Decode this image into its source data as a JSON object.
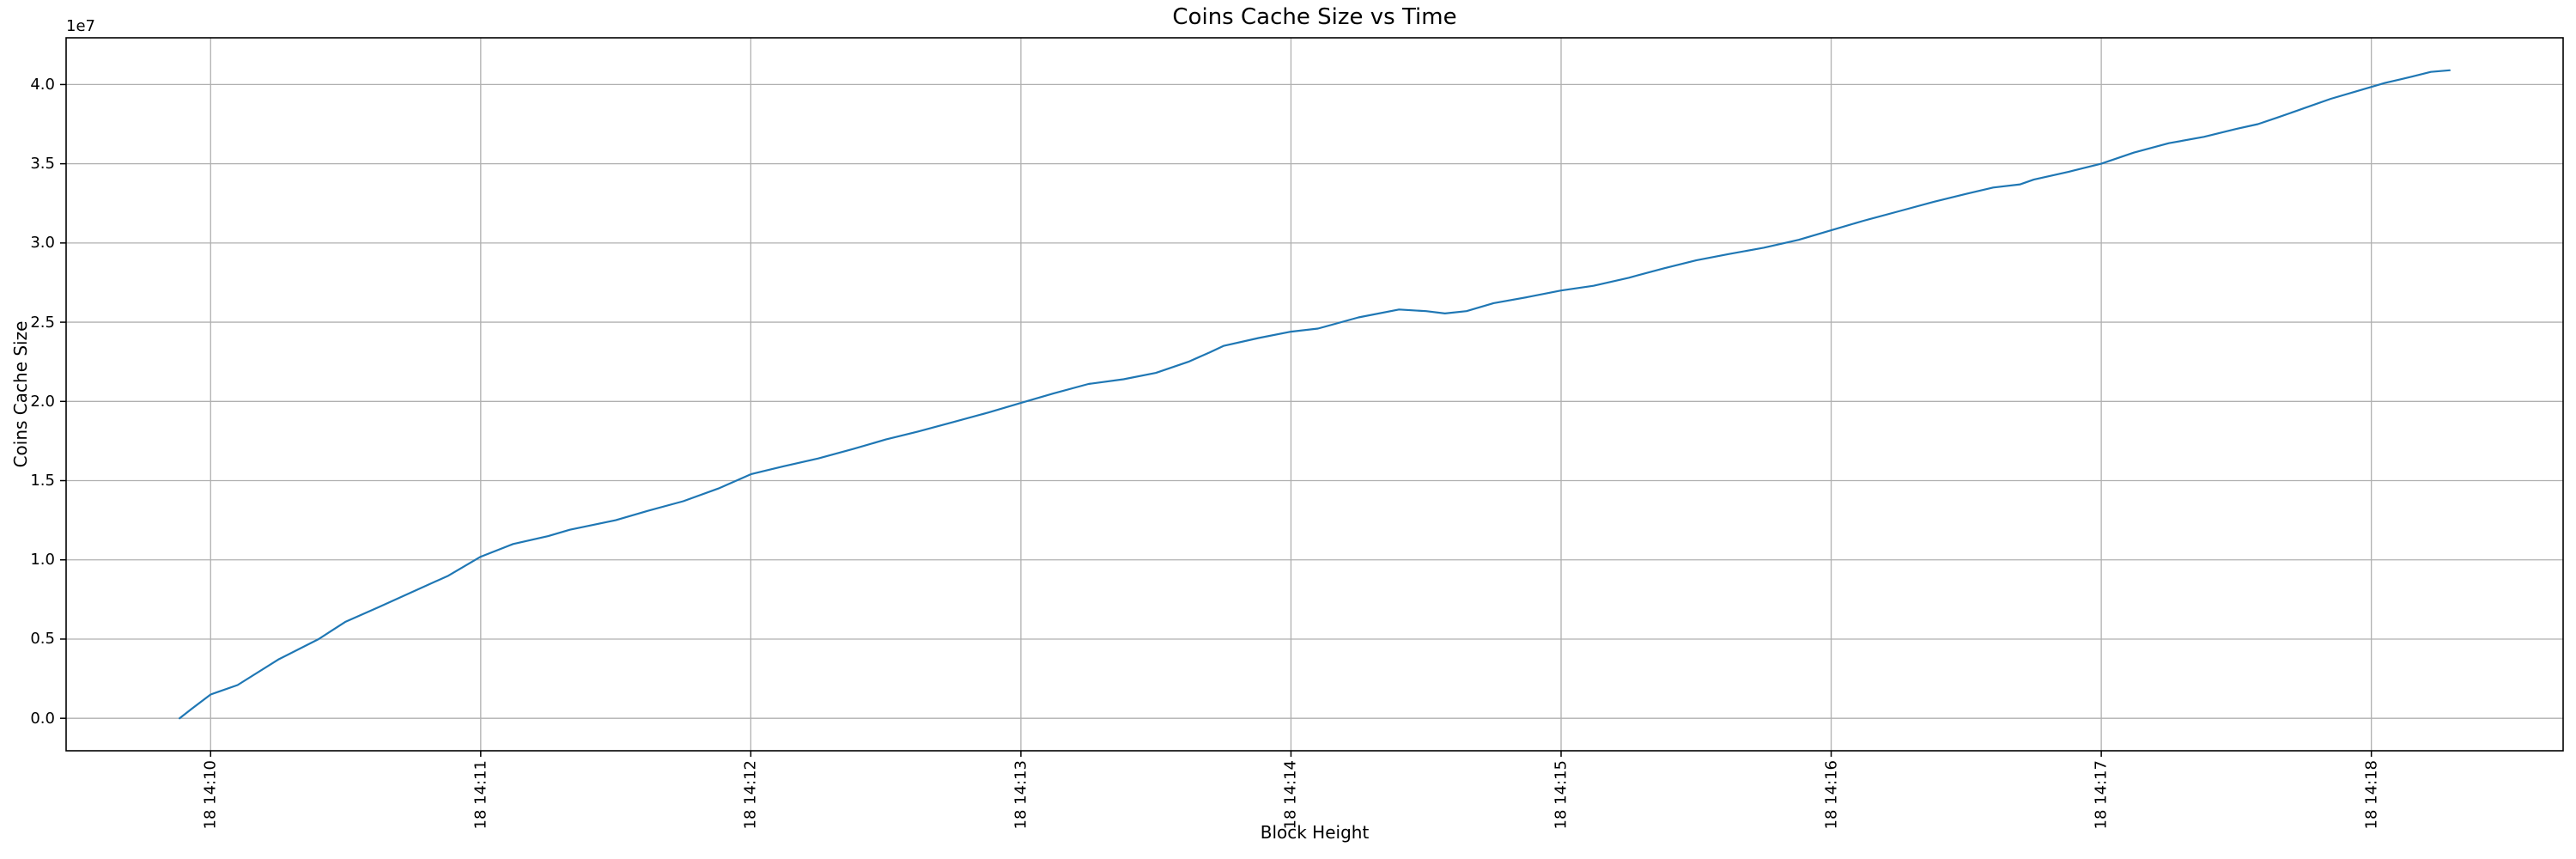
{
  "chart_data": {
    "type": "line",
    "title": "Coins Cache Size vs Time",
    "xlabel": "Block Height",
    "ylabel": "Coins Cache Size",
    "y_offset_label": "1e7",
    "grid": true,
    "legend": "none",
    "line_color": "#1f77b4",
    "grid_color": "#b0b0b0",
    "spine_color": "#000000",
    "x_ticks": [
      {
        "label": "18 14:10",
        "t": 0
      },
      {
        "label": "18 14:11",
        "t": 1
      },
      {
        "label": "18 14:12",
        "t": 2
      },
      {
        "label": "18 14:13",
        "t": 3
      },
      {
        "label": "18 14:14",
        "t": 4
      },
      {
        "label": "18 14:15",
        "t": 5
      },
      {
        "label": "18 14:16",
        "t": 6
      },
      {
        "label": "18 14:17",
        "t": 7
      },
      {
        "label": "18 14:18",
        "t": 8
      }
    ],
    "y_ticks": [
      {
        "label": "0.0",
        "value": 0.0
      },
      {
        "label": "0.5",
        "value": 0.5
      },
      {
        "label": "1.0",
        "value": 1.0
      },
      {
        "label": "1.5",
        "value": 1.5
      },
      {
        "label": "2.0",
        "value": 2.0
      },
      {
        "label": "2.5",
        "value": 2.5
      },
      {
        "label": "3.0",
        "value": 3.0
      },
      {
        "label": "3.5",
        "value": 3.5
      },
      {
        "label": "4.0",
        "value": 4.0
      }
    ],
    "xlim_minutes_from_14_10": [
      -0.535,
      8.71
    ],
    "ylim_1e7": [
      -0.205,
      4.295
    ],
    "series": [
      {
        "name": "Coins Cache Size",
        "note": "x = minutes after 18 14:10 (time axis ticks are 'day hh:mm'); y = cache size in units of 1e7",
        "x_minutes_from_14_10": [
          -0.115,
          -0.07,
          0,
          0.1,
          0.25,
          0.4,
          0.5,
          0.62,
          0.75,
          0.88,
          1.0,
          1.12,
          1.25,
          1.33,
          1.5,
          1.62,
          1.75,
          1.88,
          2.0,
          2.12,
          2.25,
          2.38,
          2.5,
          2.62,
          2.75,
          2.88,
          3.0,
          3.12,
          3.25,
          3.38,
          3.5,
          3.62,
          3.7,
          3.75,
          3.88,
          4.0,
          4.1,
          4.25,
          4.4,
          4.5,
          4.57,
          4.65,
          4.75,
          4.88,
          5.0,
          5.12,
          5.25,
          5.38,
          5.5,
          5.62,
          5.75,
          5.88,
          6.0,
          6.12,
          6.25,
          6.38,
          6.5,
          6.6,
          6.7,
          6.75,
          6.88,
          7.0,
          7.12,
          7.25,
          7.38,
          7.5,
          7.58,
          7.65,
          7.75,
          7.85,
          7.95,
          8.05,
          8.15,
          8.22,
          8.29
        ],
        "y_1e7": [
          0.0,
          0.06,
          0.15,
          0.21,
          0.37,
          0.5,
          0.61,
          0.7,
          0.8,
          0.9,
          1.02,
          1.1,
          1.15,
          1.19,
          1.25,
          1.31,
          1.37,
          1.45,
          1.54,
          1.59,
          1.64,
          1.7,
          1.76,
          1.81,
          1.87,
          1.93,
          1.99,
          2.05,
          2.11,
          2.14,
          2.18,
          2.25,
          2.31,
          2.35,
          2.4,
          2.44,
          2.46,
          2.53,
          2.58,
          2.57,
          2.555,
          2.57,
          2.62,
          2.66,
          2.7,
          2.73,
          2.78,
          2.84,
          2.89,
          2.93,
          2.97,
          3.02,
          3.08,
          3.14,
          3.2,
          3.26,
          3.31,
          3.35,
          3.37,
          3.4,
          3.45,
          3.5,
          3.57,
          3.63,
          3.67,
          3.72,
          3.75,
          3.79,
          3.85,
          3.91,
          3.96,
          4.01,
          4.05,
          4.08,
          4.09
        ]
      }
    ]
  }
}
